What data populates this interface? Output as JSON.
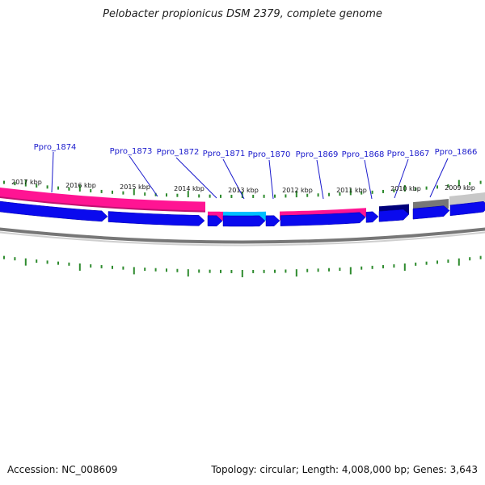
{
  "title": "Pelobacter propionicus DSM 2379, complete genome",
  "footer": {
    "accession": "Accession: NC_008609",
    "stats": "Topology: circular; Length: 4,008,000 bp; Genes: 3,643"
  },
  "colors": {
    "gene_label": "#1a1acc",
    "forward_strand": "#0a0aee",
    "backbone": "#888888",
    "tick": "#2e8b2e",
    "pink": "#ff1493",
    "cyan": "#00bfff",
    "navy": "#00007a",
    "gray": "#777777",
    "lightgray": "#c8c8c8"
  },
  "kbp_labels": [
    "2017 kbp",
    "2016 kbp",
    "2015 kbp",
    "2014 kbp",
    "2013 kbp",
    "2012 kbp",
    "2011 kbp",
    "2010 kbp",
    "2009 kbp"
  ],
  "gene_labels": [
    "Ppro_1874",
    "Ppro_1873",
    "Ppro_1872",
    "Ppro_1871",
    "Ppro_1870",
    "Ppro_1869",
    "Ppro_1868",
    "Ppro_1867",
    "Ppro_1866"
  ]
}
